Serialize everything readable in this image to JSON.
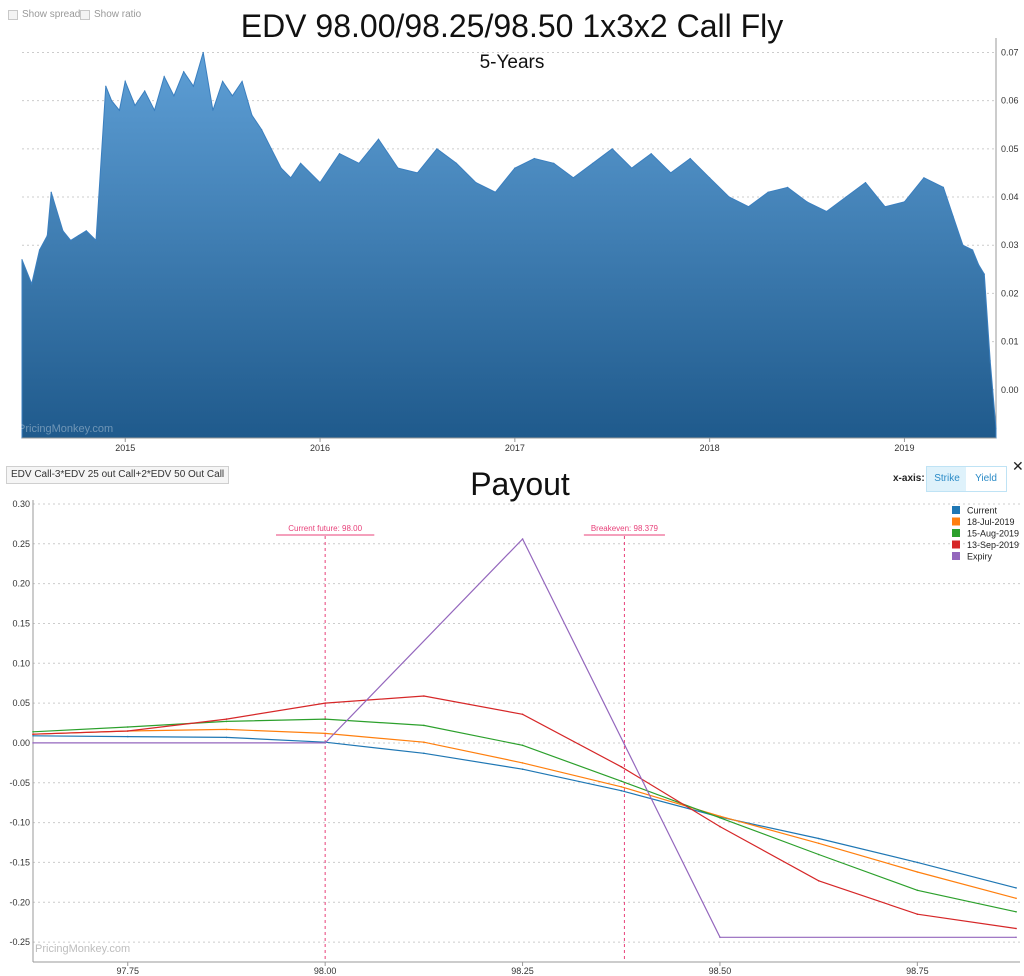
{
  "controls": {
    "show_spread": "Show spread",
    "show_ratio": "Show ratio",
    "formula": "EDV Call-3*EDV 25 out Call+2*EDV 50 Out Call",
    "xaxis_label": "x-axis:",
    "xaxis_options": [
      "Strike",
      "Yield"
    ],
    "xaxis_selected": "Strike",
    "close": "✕"
  },
  "watermark": "PricingMonkey.com",
  "colors": {
    "area_top": "#5e9fd6",
    "area_bottom": "#1f5a8c",
    "current": "#1f77b4",
    "jul": "#ff7f0e",
    "aug": "#2ca02c",
    "sep": "#d62728",
    "expiry": "#9467bd",
    "annotation": "#e8417a"
  },
  "chart_data": [
    {
      "type": "area",
      "title": "EDV 98.00/98.25/98.50 1x3x2 Call Fly",
      "subtitle": "5-Years",
      "x_ticks": [
        "2015",
        "2016",
        "2017",
        "2018",
        "2019"
      ],
      "y_ticks": [
        0.0,
        0.01,
        0.02,
        0.03,
        0.04,
        0.05,
        0.06,
        0.07
      ],
      "y_tick_labels": [
        "0.00",
        "0.01",
        "0.02",
        "0.03",
        "0.04",
        "0.05",
        "0.06",
        "0.07"
      ],
      "ylim": [
        -0.01,
        0.073
      ],
      "xlim": [
        2014.47,
        2019.47
      ],
      "series": [
        {
          "x": [
            2014.47,
            2014.52,
            2014.56,
            2014.6,
            2014.62,
            2014.68,
            2014.72,
            2014.76,
            2014.8,
            2014.85,
            2014.9,
            2014.93,
            2014.97,
            2015.0,
            2015.05,
            2015.1,
            2015.15,
            2015.2,
            2015.25,
            2015.3,
            2015.35,
            2015.4,
            2015.45,
            2015.5,
            2015.55,
            2015.6,
            2015.65,
            2015.7,
            2015.75,
            2015.8,
            2015.85,
            2015.9,
            2016.0,
            2016.1,
            2016.2,
            2016.3,
            2016.4,
            2016.5,
            2016.6,
            2016.7,
            2016.8,
            2016.9,
            2017.0,
            2017.1,
            2017.2,
            2017.3,
            2017.4,
            2017.5,
            2017.6,
            2017.7,
            2017.8,
            2017.9,
            2018.0,
            2018.1,
            2018.2,
            2018.3,
            2018.4,
            2018.5,
            2018.6,
            2018.7,
            2018.8,
            2018.9,
            2019.0,
            2019.1,
            2019.2,
            2019.25,
            2019.3,
            2019.35,
            2019.38,
            2019.41,
            2019.44,
            2019.47
          ],
          "y": [
            0.027,
            0.022,
            0.029,
            0.032,
            0.041,
            0.033,
            0.031,
            0.032,
            0.033,
            0.031,
            0.063,
            0.06,
            0.058,
            0.064,
            0.059,
            0.062,
            0.058,
            0.065,
            0.061,
            0.066,
            0.063,
            0.07,
            0.058,
            0.064,
            0.061,
            0.064,
            0.057,
            0.054,
            0.05,
            0.046,
            0.044,
            0.047,
            0.043,
            0.049,
            0.047,
            0.052,
            0.046,
            0.045,
            0.05,
            0.047,
            0.043,
            0.041,
            0.046,
            0.048,
            0.047,
            0.044,
            0.047,
            0.05,
            0.046,
            0.049,
            0.045,
            0.048,
            0.044,
            0.04,
            0.038,
            0.041,
            0.042,
            0.039,
            0.037,
            0.04,
            0.043,
            0.038,
            0.039,
            0.044,
            0.042,
            0.036,
            0.03,
            0.029,
            0.026,
            0.024,
            0.006,
            -0.008
          ]
        }
      ]
    },
    {
      "type": "line",
      "title": "Payout",
      "x_ticks": [
        97.75,
        98.0,
        98.25,
        98.5,
        98.75
      ],
      "x_tick_labels": [
        "97.75",
        "98.00",
        "98.25",
        "98.50",
        "98.75"
      ],
      "y_ticks": [
        -0.25,
        -0.2,
        -0.15,
        -0.1,
        -0.05,
        0,
        0.05,
        0.1,
        0.15,
        0.2,
        0.25,
        0.3
      ],
      "y_tick_labels": [
        "-0.25",
        "-0.20",
        "-0.15",
        "-0.10",
        "-0.05",
        "0.00",
        "0.05",
        "0.10",
        "0.15",
        "0.20",
        "0.25",
        "0.30"
      ],
      "xlim": [
        97.63,
        98.88
      ],
      "ylim": [
        -0.275,
        0.305
      ],
      "legend_position": "top-right",
      "annotations": [
        {
          "x": 98.0,
          "label": "Current future: 98.00"
        },
        {
          "x": 98.379,
          "label": "Breakeven: 98.379"
        }
      ],
      "series": [
        {
          "name": "Current",
          "x": [
            97.63,
            97.75,
            97.875,
            98.0,
            98.125,
            98.25,
            98.375,
            98.5,
            98.625,
            98.75,
            98.875
          ],
          "y": [
            0.009,
            0.008,
            0.007,
            0.001,
            -0.013,
            -0.033,
            -0.06,
            -0.093,
            -0.12,
            -0.15,
            -0.182
          ]
        },
        {
          "name": "18-Jul-2019",
          "x": [
            97.63,
            97.75,
            97.875,
            98.0,
            98.125,
            98.25,
            98.375,
            98.5,
            98.625,
            98.75,
            98.875
          ],
          "y": [
            0.011,
            0.015,
            0.017,
            0.012,
            0.001,
            -0.025,
            -0.055,
            -0.092,
            -0.126,
            -0.162,
            -0.195
          ]
        },
        {
          "name": "15-Aug-2019",
          "x": [
            97.63,
            97.75,
            97.875,
            98.0,
            98.125,
            98.25,
            98.375,
            98.5,
            98.625,
            98.75,
            98.875
          ],
          "y": [
            0.014,
            0.02,
            0.027,
            0.03,
            0.022,
            -0.003,
            -0.048,
            -0.094,
            -0.14,
            -0.185,
            -0.212
          ]
        },
        {
          "name": "13-Sep-2019",
          "x": [
            97.63,
            97.75,
            97.875,
            98.0,
            98.125,
            98.25,
            98.375,
            98.5,
            98.625,
            98.75,
            98.875
          ],
          "y": [
            0.011,
            0.015,
            0.03,
            0.05,
            0.059,
            0.036,
            -0.03,
            -0.105,
            -0.173,
            -0.215,
            -0.233
          ]
        },
        {
          "name": "Expiry",
          "x": [
            97.63,
            98.0,
            98.25,
            98.5,
            98.875
          ],
          "y": [
            0.0,
            0.0,
            0.256,
            -0.244,
            -0.244
          ]
        }
      ]
    }
  ]
}
